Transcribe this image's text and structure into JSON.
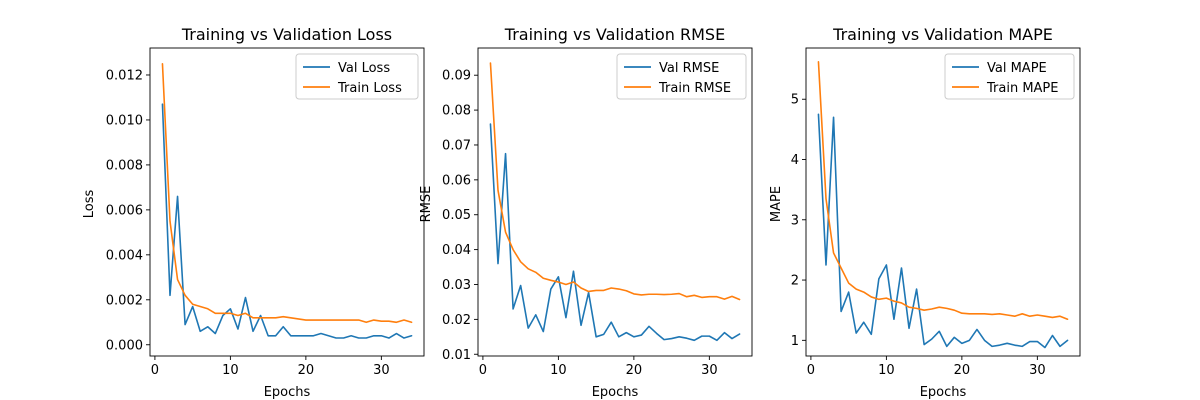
{
  "colors": {
    "val": "#1f77b4",
    "train": "#ff7f0e"
  },
  "chart_data": [
    {
      "type": "line",
      "title": "Training vs Validation Loss",
      "xlabel": "Epochs",
      "ylabel": "Loss",
      "xlim": [
        -0.65,
        35.65
      ],
      "ylim": [
        -0.0005,
        0.0132
      ],
      "xticks": [
        0,
        10,
        20,
        30
      ],
      "yticks": [
        0.0,
        0.002,
        0.004,
        0.006,
        0.008,
        0.01,
        0.012
      ],
      "ytick_labels": [
        "0.000",
        "0.002",
        "0.004",
        "0.006",
        "0.008",
        "0.010",
        "0.012"
      ],
      "legend_position": "upper right",
      "x": [
        1,
        2,
        3,
        4,
        5,
        6,
        7,
        8,
        9,
        10,
        11,
        12,
        13,
        14,
        15,
        16,
        17,
        18,
        19,
        20,
        21,
        22,
        23,
        24,
        25,
        26,
        27,
        28,
        29,
        30,
        31,
        32,
        33,
        34
      ],
      "series": [
        {
          "name": "Val Loss",
          "color_key": "val",
          "values": [
            0.0107,
            0.0022,
            0.0066,
            0.0009,
            0.0017,
            0.0006,
            0.0008,
            0.0005,
            0.0013,
            0.0016,
            0.0007,
            0.0021,
            0.0006,
            0.0013,
            0.0004,
            0.0004,
            0.0008,
            0.0004,
            0.0004,
            0.0004,
            0.0004,
            0.0005,
            0.0004,
            0.0003,
            0.0003,
            0.0004,
            0.0003,
            0.0003,
            0.0004,
            0.0004,
            0.0003,
            0.0005,
            0.0003,
            0.0004
          ]
        },
        {
          "name": "Train Loss",
          "color_key": "train",
          "values": [
            0.0125,
            0.0055,
            0.0029,
            0.0022,
            0.0018,
            0.0017,
            0.0016,
            0.0014,
            0.0014,
            0.0014,
            0.0013,
            0.0014,
            0.0012,
            0.0012,
            0.0012,
            0.0012,
            0.00125,
            0.0012,
            0.00115,
            0.0011,
            0.0011,
            0.0011,
            0.0011,
            0.0011,
            0.0011,
            0.0011,
            0.0011,
            0.001,
            0.0011,
            0.00105,
            0.00105,
            0.001,
            0.0011,
            0.001
          ]
        }
      ]
    },
    {
      "type": "line",
      "title": "Training vs Validation RMSE",
      "xlabel": "Epochs",
      "ylabel": "RMSE",
      "xlim": [
        -0.65,
        35.65
      ],
      "ylim": [
        0.0095,
        0.0978
      ],
      "xticks": [
        0,
        10,
        20,
        30
      ],
      "yticks": [
        0.01,
        0.02,
        0.03,
        0.04,
        0.05,
        0.06,
        0.07,
        0.08,
        0.09
      ],
      "ytick_labels": [
        "0.01",
        "0.02",
        "0.03",
        "0.04",
        "0.05",
        "0.06",
        "0.07",
        "0.08",
        "0.09"
      ],
      "legend_position": "upper right",
      "x": [
        1,
        2,
        3,
        4,
        5,
        6,
        7,
        8,
        9,
        10,
        11,
        12,
        13,
        14,
        15,
        16,
        17,
        18,
        19,
        20,
        21,
        22,
        23,
        24,
        25,
        26,
        27,
        28,
        29,
        30,
        31,
        32,
        33,
        34
      ],
      "series": [
        {
          "name": "Val RMSE",
          "color_key": "val",
          "values": [
            0.076,
            0.036,
            0.0675,
            0.023,
            0.0297,
            0.0175,
            0.0213,
            0.0165,
            0.0287,
            0.0322,
            0.0205,
            0.0338,
            0.0183,
            0.0277,
            0.015,
            0.0157,
            0.0192,
            0.015,
            0.0162,
            0.015,
            0.0155,
            0.018,
            0.016,
            0.0142,
            0.0145,
            0.015,
            0.0146,
            0.014,
            0.0152,
            0.0152,
            0.014,
            0.0162,
            0.0145,
            0.0158
          ]
        },
        {
          "name": "Train RMSE",
          "color_key": "train",
          "values": [
            0.0935,
            0.057,
            0.045,
            0.04,
            0.0365,
            0.0345,
            0.0335,
            0.0318,
            0.0312,
            0.0307,
            0.03,
            0.0307,
            0.029,
            0.028,
            0.0283,
            0.0283,
            0.029,
            0.0287,
            0.0282,
            0.0273,
            0.027,
            0.0272,
            0.0272,
            0.0271,
            0.0272,
            0.0274,
            0.0265,
            0.0269,
            0.0263,
            0.0265,
            0.0265,
            0.0258,
            0.0266,
            0.0257
          ]
        }
      ]
    },
    {
      "type": "line",
      "title": "Training vs Validation MAPE",
      "xlabel": "Epochs",
      "ylabel": "MAPE",
      "xlim": [
        -0.65,
        35.65
      ],
      "ylim": [
        0.74,
        5.85
      ],
      "xticks": [
        0,
        10,
        20,
        30
      ],
      "yticks": [
        1,
        2,
        3,
        4,
        5
      ],
      "ytick_labels": [
        "1",
        "2",
        "3",
        "4",
        "5"
      ],
      "legend_position": "upper right",
      "x": [
        1,
        2,
        3,
        4,
        5,
        6,
        7,
        8,
        9,
        10,
        11,
        12,
        13,
        14,
        15,
        16,
        17,
        18,
        19,
        20,
        21,
        22,
        23,
        24,
        25,
        26,
        27,
        28,
        29,
        30,
        31,
        32,
        33,
        34
      ],
      "series": [
        {
          "name": "Val MAPE",
          "color_key": "val",
          "values": [
            4.75,
            2.25,
            4.7,
            1.48,
            1.8,
            1.12,
            1.3,
            1.1,
            2.02,
            2.25,
            1.35,
            2.2,
            1.2,
            1.85,
            0.93,
            1.02,
            1.15,
            0.9,
            1.05,
            0.95,
            1.0,
            1.18,
            1.0,
            0.9,
            0.92,
            0.95,
            0.92,
            0.9,
            0.98,
            0.98,
            0.88,
            1.08,
            0.9,
            1.0
          ]
        },
        {
          "name": "Train MAPE",
          "color_key": "train",
          "values": [
            5.62,
            3.35,
            2.45,
            2.2,
            1.95,
            1.85,
            1.8,
            1.72,
            1.68,
            1.7,
            1.65,
            1.62,
            1.55,
            1.53,
            1.5,
            1.52,
            1.55,
            1.53,
            1.5,
            1.45,
            1.44,
            1.44,
            1.44,
            1.43,
            1.44,
            1.42,
            1.4,
            1.44,
            1.4,
            1.42,
            1.4,
            1.38,
            1.4,
            1.35
          ]
        }
      ]
    }
  ]
}
